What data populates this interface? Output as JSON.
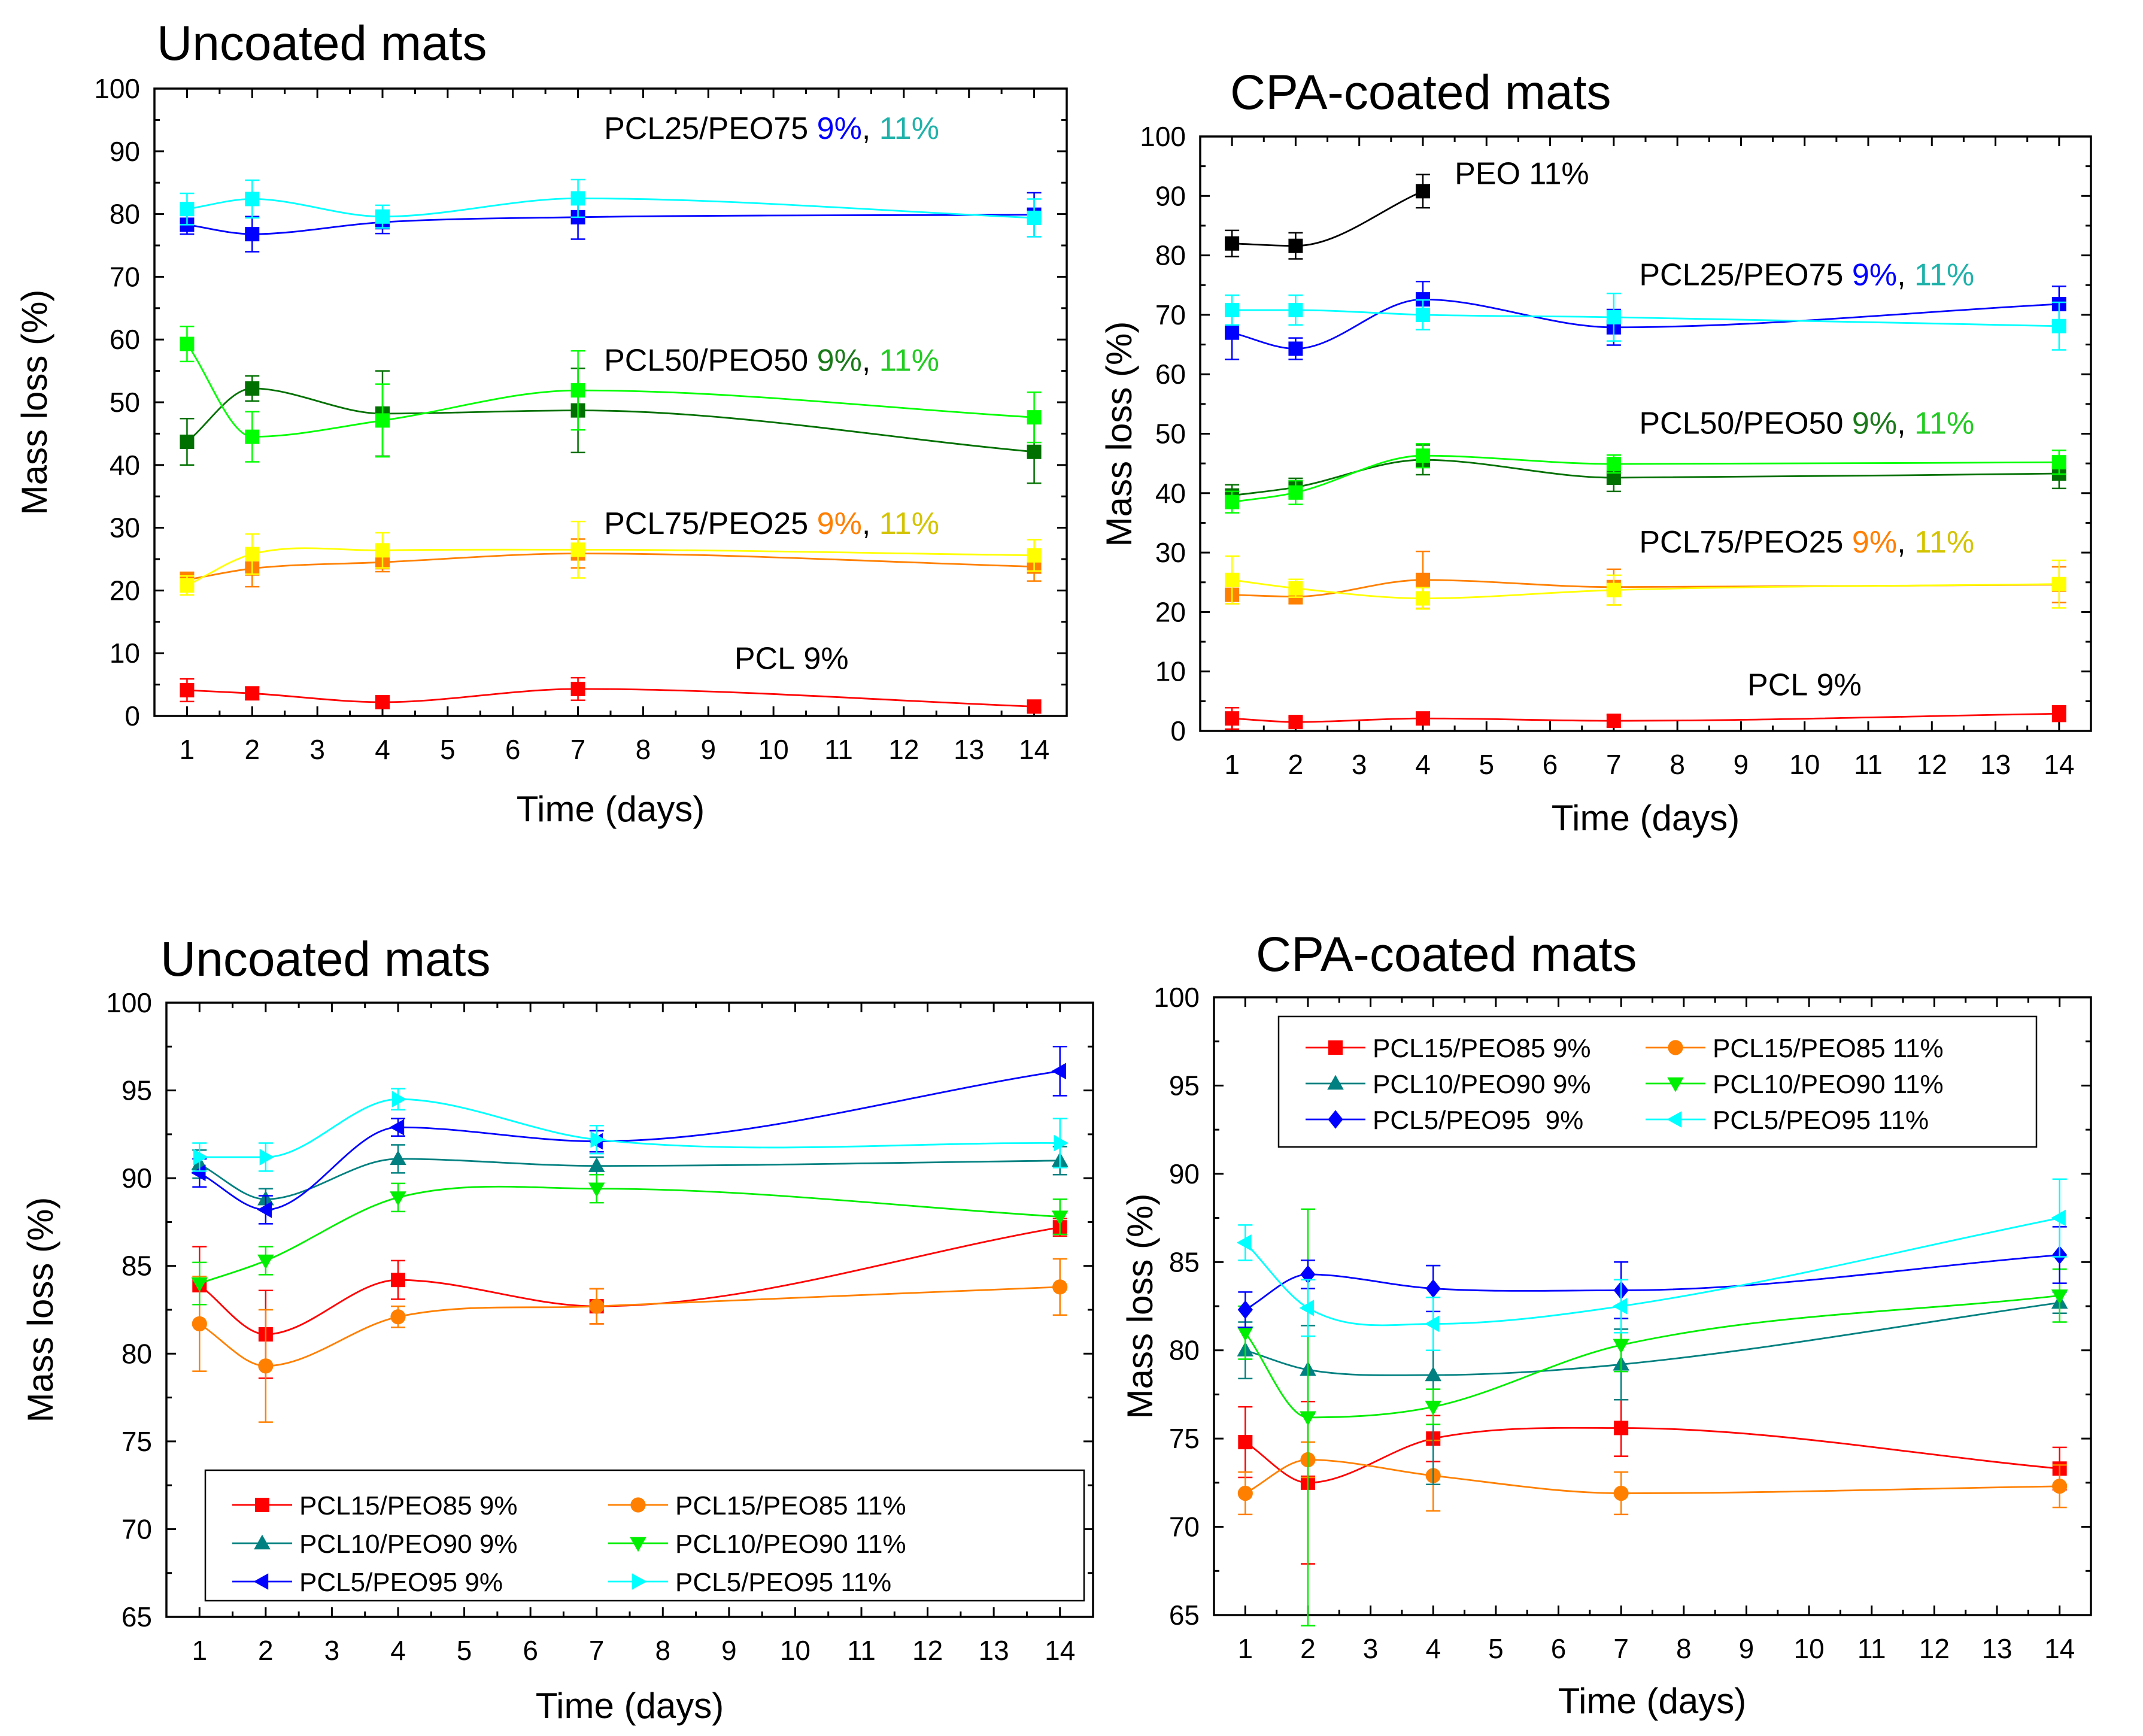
{
  "chart_data": [
    {
      "type": "line",
      "title": "Uncoated mats",
      "xlabel": "Time (days)",
      "ylabel": "Mass loss (%)",
      "xlim": [
        0.5,
        14.5
      ],
      "ylim": [
        0,
        100
      ],
      "xticks": [
        1,
        2,
        3,
        4,
        5,
        6,
        7,
        8,
        9,
        10,
        11,
        12,
        13,
        14
      ],
      "yticks": [
        0,
        10,
        20,
        30,
        40,
        50,
        60,
        70,
        80,
        90,
        100
      ],
      "marker": "square",
      "annotations": [
        {
          "parts": [
            {
              "text": "PCL25/PEO75 ",
              "color": "#000000"
            },
            {
              "text": "9%",
              "color": "#0000ff"
            },
            {
              "text": ", ",
              "color": "#000000"
            },
            {
              "text": "11%",
              "color": "#20b2aa"
            }
          ],
          "at": [
            7.4,
            92
          ]
        },
        {
          "parts": [
            {
              "text": "PCL50/PEO50 ",
              "color": "#000000"
            },
            {
              "text": "9%",
              "color": "#1a7a1a"
            },
            {
              "text": ", ",
              "color": "#000000"
            },
            {
              "text": "11%",
              "color": "#22cc22"
            }
          ],
          "at": [
            7.4,
            55
          ]
        },
        {
          "parts": [
            {
              "text": "PCL75/PEO25 ",
              "color": "#000000"
            },
            {
              "text": "9%",
              "color": "#ff7f00"
            },
            {
              "text": ", ",
              "color": "#000000"
            },
            {
              "text": "11%",
              "color": "#d4c400"
            }
          ],
          "at": [
            7.4,
            29
          ]
        },
        {
          "parts": [
            {
              "text": "PCL 9%",
              "color": "#000000"
            }
          ],
          "at": [
            9.4,
            7.5
          ]
        }
      ],
      "series": [
        {
          "name": "PCL25/PEO75 9%",
          "color": "#0000ff",
          "x": [
            1,
            2,
            4,
            7,
            14
          ],
          "values": [
            78.3,
            76.8,
            78.7,
            79.5,
            79.9
          ],
          "errors": [
            1.5,
            2.8,
            1.8,
            3.5,
            3.5
          ]
        },
        {
          "name": "PCL25/PEO75 11%",
          "color": "#00ffff",
          "x": [
            1,
            2,
            4,
            7,
            14
          ],
          "values": [
            80.8,
            82.4,
            79.6,
            82.5,
            79.4
          ],
          "errors": [
            2.5,
            3.0,
            1.8,
            3.0,
            3.0
          ]
        },
        {
          "name": "PCL50/PEO50 9%",
          "color": "#007000",
          "x": [
            1,
            2,
            4,
            7,
            14
          ],
          "values": [
            43.7,
            52.2,
            48.2,
            48.7,
            42.1
          ],
          "errors": [
            3.7,
            2.0,
            6.8,
            6.7,
            5.0
          ]
        },
        {
          "name": "PCL50/PEO50 11%",
          "color": "#00ff00",
          "x": [
            1,
            2,
            4,
            7,
            14
          ],
          "values": [
            59.3,
            44.5,
            47.1,
            51.9,
            47.6
          ],
          "errors": [
            2.8,
            4.0,
            5.8,
            6.3,
            4.0
          ]
        },
        {
          "name": "PCL75/PEO25 9%",
          "color": "#ff8000",
          "x": [
            1,
            2,
            4,
            7,
            14
          ],
          "values": [
            21.7,
            23.5,
            24.5,
            25.9,
            23.8
          ],
          "errors": [
            1.2,
            2.9,
            1.5,
            2.3,
            2.3
          ]
        },
        {
          "name": "PCL75/PEO25 11%",
          "color": "#ffff00",
          "x": [
            1,
            2,
            4,
            7,
            14
          ],
          "values": [
            20.8,
            25.8,
            26.4,
            26.5,
            25.6
          ],
          "errors": [
            1.5,
            3.2,
            2.8,
            4.5,
            2.5
          ]
        },
        {
          "name": "PCL 9%",
          "color": "#ff0000",
          "x": [
            1,
            2,
            4,
            7,
            14
          ],
          "values": [
            4.1,
            3.6,
            2.2,
            4.3,
            1.5
          ],
          "errors": [
            1.8,
            1.0,
            0.7,
            1.8,
            0.6
          ]
        }
      ]
    },
    {
      "type": "line",
      "title": "CPA-coated mats",
      "xlabel": "Time (days)",
      "ylabel": "Mass loss (%)",
      "xlim": [
        0.5,
        14.5
      ],
      "ylim": [
        0,
        100
      ],
      "xticks": [
        1,
        2,
        3,
        4,
        5,
        6,
        7,
        8,
        9,
        10,
        11,
        12,
        13,
        14
      ],
      "yticks": [
        0,
        10,
        20,
        30,
        40,
        50,
        60,
        70,
        80,
        90,
        100
      ],
      "marker": "square",
      "annotations": [
        {
          "parts": [
            {
              "text": "PEO 11%",
              "color": "#000000"
            }
          ],
          "at": [
            4.5,
            92
          ]
        },
        {
          "parts": [
            {
              "text": "PCL25/PEO75 ",
              "color": "#000000"
            },
            {
              "text": "9%",
              "color": "#0000ff"
            },
            {
              "text": ", ",
              "color": "#000000"
            },
            {
              "text": "11%",
              "color": "#20b2aa"
            }
          ],
          "at": [
            7.4,
            75
          ]
        },
        {
          "parts": [
            {
              "text": "PCL50/PEO50 ",
              "color": "#000000"
            },
            {
              "text": "9%",
              "color": "#1a7a1a"
            },
            {
              "text": ", ",
              "color": "#000000"
            },
            {
              "text": "11%",
              "color": "#22cc22"
            }
          ],
          "at": [
            7.4,
            50
          ]
        },
        {
          "parts": [
            {
              "text": "PCL75/PEO25 ",
              "color": "#000000"
            },
            {
              "text": "9%",
              "color": "#ff7f00"
            },
            {
              "text": ", ",
              "color": "#000000"
            },
            {
              "text": "11%",
              "color": "#d4c400"
            }
          ],
          "at": [
            7.4,
            30
          ]
        },
        {
          "parts": [
            {
              "text": "PCL 9%",
              "color": "#000000"
            }
          ],
          "at": [
            9.1,
            6
          ]
        }
      ],
      "series": [
        {
          "name": "PEO 11%",
          "color": "#000000",
          "x": [
            1,
            2,
            4
          ],
          "values": [
            82.0,
            81.6,
            90.8
          ],
          "errors": [
            2.2,
            2.2,
            2.8
          ]
        },
        {
          "name": "PCL25/PEO75 9%",
          "color": "#0000ff",
          "x": [
            1,
            2,
            4,
            7,
            14
          ],
          "values": [
            67.0,
            64.3,
            72.6,
            67.9,
            71.8
          ],
          "errors": [
            4.5,
            1.8,
            3.0,
            3.0,
            3.0
          ]
        },
        {
          "name": "PCL25/PEO75 11%",
          "color": "#00ffff",
          "x": [
            1,
            2,
            4,
            7,
            14
          ],
          "values": [
            70.8,
            70.8,
            70.0,
            69.6,
            68.1
          ],
          "errors": [
            2.5,
            2.5,
            2.5,
            4.0,
            4.0
          ]
        },
        {
          "name": "PCL50/PEO50 9%",
          "color": "#007000",
          "x": [
            1,
            2,
            4,
            7,
            14
          ],
          "values": [
            39.6,
            41.0,
            45.6,
            42.6,
            43.3
          ],
          "errors": [
            1.8,
            1.5,
            2.5,
            2.3,
            2.5
          ]
        },
        {
          "name": "PCL50/PEO50 11%",
          "color": "#00ff00",
          "x": [
            1,
            2,
            4,
            7,
            14
          ],
          "values": [
            38.5,
            40.1,
            46.3,
            44.9,
            45.2
          ],
          "errors": [
            1.8,
            2.0,
            2.0,
            1.5,
            2.0
          ]
        },
        {
          "name": "PCL75/PEO25 9%",
          "color": "#ff8000",
          "x": [
            1,
            2,
            4,
            7,
            14
          ],
          "values": [
            22.9,
            22.6,
            25.4,
            24.2,
            24.6
          ],
          "errors": [
            1.5,
            1.2,
            4.8,
            3.0,
            3.0
          ]
        },
        {
          "name": "PCL75/PEO25 11%",
          "color": "#ffff00",
          "x": [
            1,
            2,
            4,
            7,
            14
          ],
          "values": [
            25.4,
            24.0,
            22.3,
            23.7,
            24.7
          ],
          "errors": [
            4.0,
            1.5,
            1.8,
            2.5,
            4.0
          ]
        },
        {
          "name": "PCL 9%",
          "color": "#ff0000",
          "x": [
            1,
            2,
            4,
            7,
            14
          ],
          "values": [
            2.1,
            1.5,
            2.1,
            1.7,
            2.9
          ],
          "errors": [
            1.8,
            0.8,
            0.6,
            1.0,
            1.3
          ]
        }
      ]
    },
    {
      "type": "line",
      "title": "Uncoated mats",
      "xlabel": "Time (days)",
      "ylabel": "Mass loss (%)",
      "xlim": [
        0.5,
        14.5
      ],
      "ylim": [
        65,
        100
      ],
      "xticks": [
        1,
        2,
        3,
        4,
        5,
        6,
        7,
        8,
        9,
        10,
        11,
        12,
        13,
        14
      ],
      "yticks": [
        65,
        70,
        75,
        80,
        85,
        90,
        95,
        100
      ],
      "legend": "bottom",
      "legend_columns": 2,
      "series": [
        {
          "name": "PCL15/PEO85 9%",
          "marker": "square",
          "color": "#ff0000",
          "x": [
            1,
            2,
            4,
            7,
            14
          ],
          "values": [
            83.9,
            81.1,
            84.2,
            82.7,
            87.2
          ],
          "errors": [
            2.2,
            2.5,
            1.1,
            1.0,
            0.5
          ]
        },
        {
          "name": "PCL15/PEO85 11%",
          "marker": "circle",
          "color": "#ff8000",
          "x": [
            1,
            2,
            4,
            7,
            14
          ],
          "values": [
            81.7,
            79.3,
            82.1,
            82.7,
            83.8
          ],
          "errors": [
            2.7,
            3.2,
            0.6,
            1.0,
            1.6
          ]
        },
        {
          "name": "PCL10/PEO90 9%",
          "marker": "triangle-up",
          "color": "#008080",
          "x": [
            1,
            2,
            4,
            7,
            14
          ],
          "values": [
            90.8,
            88.8,
            91.1,
            90.7,
            91.0
          ],
          "errors": [
            0.8,
            0.6,
            0.8,
            0.5,
            0.8
          ]
        },
        {
          "name": "PCL10/PEO90 11%",
          "marker": "triangle-down",
          "color": "#00ee00",
          "x": [
            1,
            2,
            4,
            7,
            14
          ],
          "values": [
            84.0,
            85.3,
            88.9,
            89.4,
            87.8
          ],
          "errors": [
            1.2,
            0.8,
            0.8,
            0.8,
            1.0
          ]
        },
        {
          "name": "PCL5/PEO95 9%",
          "marker": "triangle-left",
          "color": "#0000ff",
          "x": [
            1,
            2,
            4,
            7,
            14
          ],
          "values": [
            90.3,
            88.2,
            92.9,
            92.1,
            96.1
          ],
          "errors": [
            0.8,
            0.8,
            0.5,
            0.6,
            1.4
          ]
        },
        {
          "name": "PCL5/PEO95 11%",
          "marker": "triangle-right",
          "color": "#00ffff",
          "x": [
            1,
            2,
            4,
            7,
            14
          ],
          "values": [
            91.2,
            91.2,
            94.5,
            92.2,
            92.0
          ],
          "errors": [
            0.8,
            0.8,
            0.6,
            0.8,
            1.4
          ]
        }
      ]
    },
    {
      "type": "line",
      "title": "CPA-coated mats",
      "xlabel": "Time (days)",
      "ylabel": "Mass loss (%)",
      "xlim": [
        0.5,
        14.5
      ],
      "ylim": [
        65,
        100
      ],
      "xticks": [
        1,
        2,
        3,
        4,
        5,
        6,
        7,
        8,
        9,
        10,
        11,
        12,
        13,
        14
      ],
      "yticks": [
        65,
        70,
        75,
        80,
        85,
        90,
        95,
        100
      ],
      "legend": "top",
      "legend_columns": 2,
      "series": [
        {
          "name": "PCL15/PEO85 9%",
          "marker": "square",
          "color": "#ff0000",
          "x": [
            1,
            2,
            4,
            7,
            14
          ],
          "values": [
            74.8,
            72.5,
            75.0,
            75.6,
            73.3
          ],
          "errors": [
            2.0,
            4.6,
            1.3,
            1.6,
            1.2
          ]
        },
        {
          "name": "PCL15/PEO85 11%",
          "marker": "circle",
          "color": "#ff8000",
          "x": [
            1,
            2,
            4,
            7,
            14
          ],
          "values": [
            71.9,
            73.8,
            72.9,
            71.9,
            72.3
          ],
          "errors": [
            1.2,
            1.0,
            2.0,
            1.2,
            1.2
          ]
        },
        {
          "name": "PCL10/PEO90 9%",
          "marker": "triangle-up",
          "color": "#008080",
          "x": [
            1,
            2,
            4,
            7,
            14
          ],
          "values": [
            80.0,
            78.9,
            78.6,
            79.2,
            82.7
          ],
          "errors": [
            1.6,
            2.5,
            6.2,
            2.0,
            0.6
          ]
        },
        {
          "name": "PCL10/PEO90 11%",
          "marker": "triangle-down",
          "color": "#00ee00",
          "x": [
            1,
            2,
            4,
            7,
            14
          ],
          "values": [
            81.0,
            76.2,
            76.8,
            80.3,
            83.1
          ],
          "errors": [
            1.5,
            11.8,
            1.0,
            1.5,
            1.5
          ]
        },
        {
          "name": "PCL5/PEO95  9%",
          "marker": "diamond",
          "color": "#0000ff",
          "x": [
            1,
            2,
            4,
            7,
            14
          ],
          "values": [
            82.3,
            84.3,
            83.5,
            83.4,
            85.4
          ],
          "errors": [
            1.0,
            0.8,
            1.3,
            1.6,
            1.6
          ]
        },
        {
          "name": "PCL5/PEO95 11%",
          "marker": "triangle-left",
          "color": "#00ffff",
          "x": [
            1,
            2,
            4,
            7,
            14
          ],
          "values": [
            86.1,
            82.4,
            81.5,
            82.5,
            87.5
          ],
          "errors": [
            1.0,
            1.6,
            1.5,
            1.5,
            2.2
          ]
        }
      ]
    }
  ]
}
